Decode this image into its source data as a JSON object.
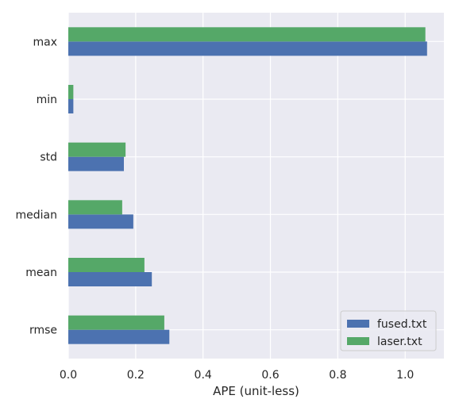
{
  "chart_data": {
    "type": "bar",
    "orientation": "horizontal",
    "categories": [
      "rmse",
      "mean",
      "median",
      "std",
      "min",
      "max"
    ],
    "series": [
      {
        "name": "fused.txt",
        "color": "#4c72b0",
        "values": [
          0.3,
          0.248,
          0.193,
          0.165,
          0.015,
          1.065
        ]
      },
      {
        "name": "laser.txt",
        "color": "#55a868",
        "values": [
          0.285,
          0.226,
          0.16,
          0.17,
          0.015,
          1.06
        ]
      }
    ],
    "xlabel": "APE (unit-less)",
    "xlim": [
      0,
      1.115
    ],
    "xticks": [
      "0.0",
      "0.2",
      "0.4",
      "0.6",
      "0.8",
      "1.0"
    ],
    "grid": true,
    "legend_position": "bottom-right",
    "background": "#eaeaf2"
  }
}
